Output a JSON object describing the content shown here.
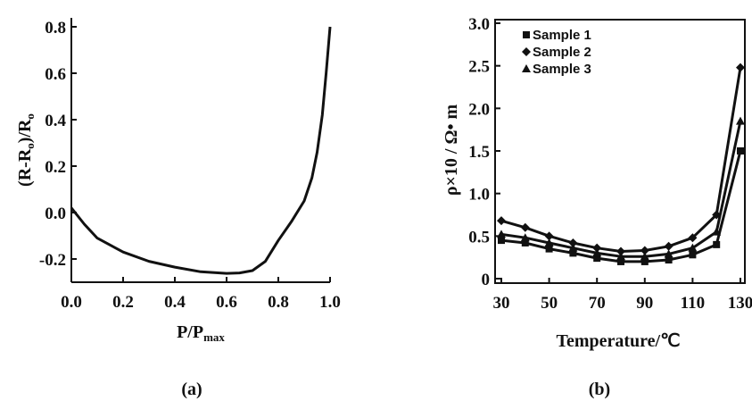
{
  "chart_data": [
    {
      "type": "line",
      "panel_label": "(a)",
      "xlabel": "P/P",
      "xlabel_sub": "max",
      "ylabel_parts": [
        "(R-R",
        "o",
        ")/R",
        "o"
      ],
      "xlim": [
        0.0,
        1.0
      ],
      "ylim": [
        -0.3,
        0.8
      ],
      "xticks": [
        "0.0",
        "0.2",
        "0.4",
        "0.6",
        "0.8",
        "1.0"
      ],
      "xtick_values": [
        0.0,
        0.2,
        0.4,
        0.6,
        0.8,
        1.0
      ],
      "yticks": [
        "-0.2",
        "0.0",
        "0.2",
        "0.4",
        "0.6",
        "0.8"
      ],
      "ytick_values": [
        -0.2,
        0.0,
        0.2,
        0.4,
        0.6,
        0.8
      ],
      "grid": false,
      "series": [
        {
          "x": [
            0.0,
            0.05,
            0.1,
            0.2,
            0.3,
            0.4,
            0.5,
            0.6,
            0.65,
            0.7,
            0.75,
            0.8,
            0.85,
            0.9,
            0.93,
            0.95,
            0.97,
            0.985,
            1.0
          ],
          "y": [
            0.02,
            -0.05,
            -0.11,
            -0.17,
            -0.21,
            -0.235,
            -0.255,
            -0.262,
            -0.26,
            -0.25,
            -0.21,
            -0.12,
            -0.04,
            0.05,
            0.15,
            0.26,
            0.42,
            0.6,
            0.8
          ]
        }
      ]
    },
    {
      "type": "line",
      "panel_label": "(b)",
      "xlabel": "Temperature/℃",
      "ylabel": "ρ×10 / Ω• m",
      "xlim": [
        30,
        130
      ],
      "ylim": [
        0,
        3.0
      ],
      "xticks": [
        "30",
        "50",
        "70",
        "90",
        "110",
        "130"
      ],
      "xtick_values": [
        30,
        50,
        70,
        90,
        110,
        130
      ],
      "yticks": [
        "0",
        "0.5",
        "1.0",
        "1.5",
        "2.0",
        "2.5",
        "3.0"
      ],
      "ytick_values": [
        0,
        0.5,
        1.0,
        1.5,
        2.0,
        2.5,
        3.0
      ],
      "grid": false,
      "legend_position": "top-left",
      "series": [
        {
          "name": "Sample 1",
          "marker": "square",
          "x": [
            30,
            40,
            50,
            60,
            70,
            80,
            90,
            100,
            110,
            120,
            130
          ],
          "y": [
            0.45,
            0.42,
            0.35,
            0.3,
            0.24,
            0.2,
            0.2,
            0.22,
            0.28,
            0.4,
            1.5
          ]
        },
        {
          "name": "Sample 2",
          "marker": "diamond",
          "x": [
            30,
            40,
            50,
            60,
            70,
            80,
            90,
            100,
            110,
            120,
            130
          ],
          "y": [
            0.68,
            0.6,
            0.5,
            0.42,
            0.36,
            0.32,
            0.33,
            0.38,
            0.48,
            0.75,
            2.48
          ]
        },
        {
          "name": "Sample 3",
          "marker": "triangle",
          "x": [
            30,
            40,
            50,
            60,
            70,
            80,
            90,
            100,
            110,
            120,
            130
          ],
          "y": [
            0.52,
            0.48,
            0.42,
            0.36,
            0.3,
            0.26,
            0.26,
            0.29,
            0.36,
            0.55,
            1.85
          ]
        }
      ]
    }
  ]
}
